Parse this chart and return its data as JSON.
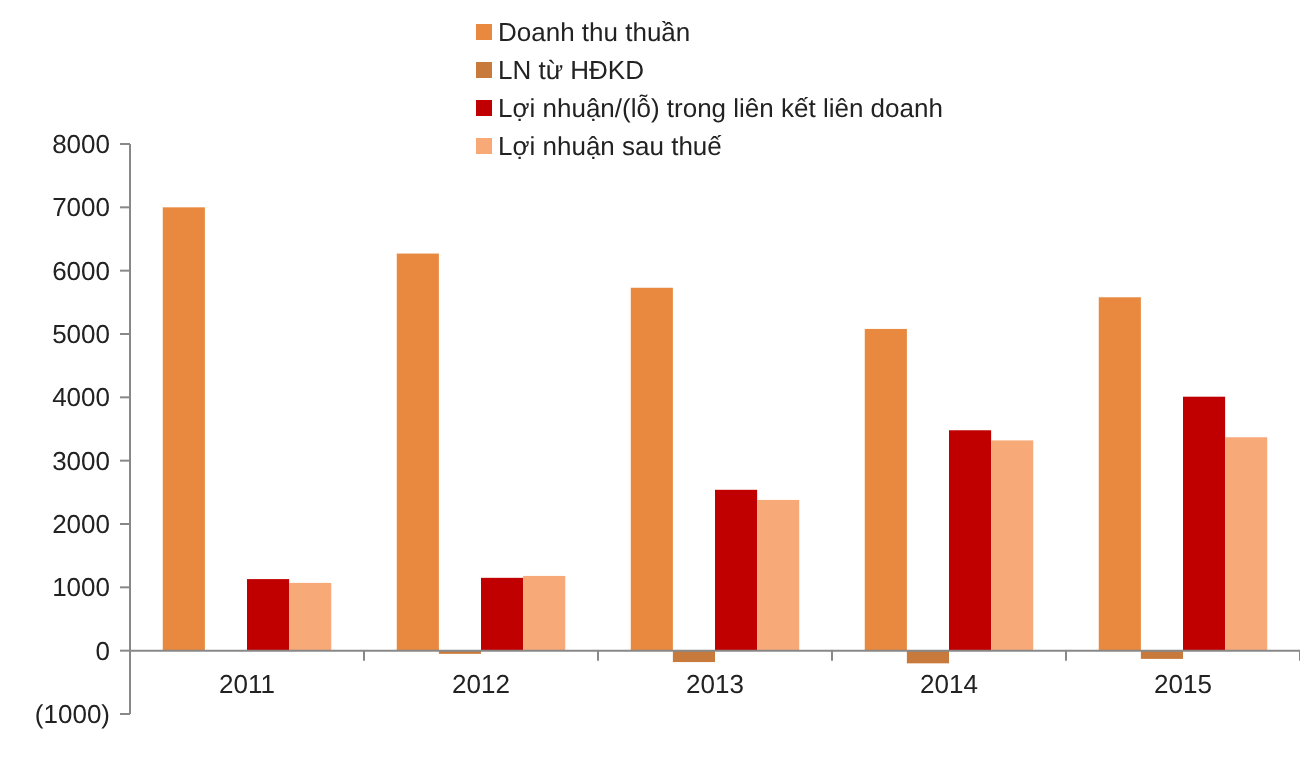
{
  "chart_data": {
    "type": "bar",
    "categories": [
      "2011",
      "2012",
      "2013",
      "2014",
      "2015"
    ],
    "series": [
      {
        "name": "Doanh thu thuần",
        "color": "#e8893f",
        "values": [
          7000,
          6270,
          5730,
          5080,
          5580
        ]
      },
      {
        "name": "LN từ HĐKD",
        "color": "#c87a3c",
        "values": [
          0,
          -50,
          -180,
          -200,
          -130
        ]
      },
      {
        "name": "Lợi nhuận/(lỗ) trong liên kết liên doanh",
        "color": "#c00000",
        "values": [
          1130,
          1150,
          2540,
          3480,
          4010
        ]
      },
      {
        "name": "Lợi nhuận sau thuế",
        "color": "#f7aa78",
        "values": [
          1070,
          1180,
          2380,
          3320,
          3370
        ]
      }
    ],
    "ylim": [
      -1000,
      8000
    ],
    "yticks": [
      {
        "value": -1000,
        "label": "(1000)"
      },
      0,
      1000,
      2000,
      3000,
      4000,
      5000,
      6000,
      7000,
      8000
    ],
    "grid": false,
    "legend": "top"
  }
}
